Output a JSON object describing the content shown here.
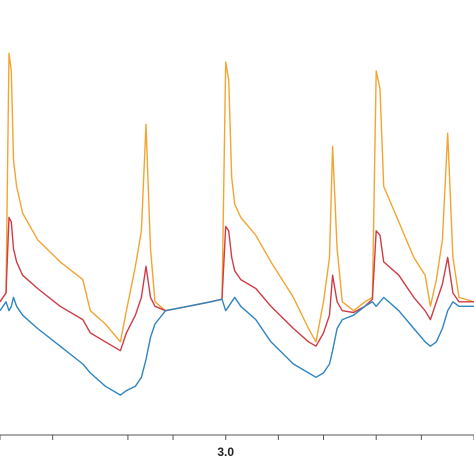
{
  "chart_data": {
    "type": "line",
    "xlim": [
      0,
      6.3
    ],
    "ylim": [
      -1.5,
      3.4
    ],
    "grid": false,
    "x_ticks": [
      0.0,
      0.7,
      1.7,
      2.3,
      3.0,
      3.7,
      4.3,
      5.0,
      5.6,
      6.3
    ],
    "x_tick_labels": [
      {
        "x": 3.0,
        "text": "3.0"
      }
    ],
    "series": [
      {
        "color": "#f2a531",
        "points": [
          [
            0,
            0
          ],
          [
            0.04,
            0.05
          ],
          [
            0.08,
            0.1
          ],
          [
            0.12,
            2.8
          ],
          [
            0.15,
            2.6
          ],
          [
            0.18,
            1.6
          ],
          [
            0.22,
            1.3
          ],
          [
            0.3,
            1.0
          ],
          [
            0.5,
            0.7
          ],
          [
            0.8,
            0.45
          ],
          [
            1.1,
            0.25
          ],
          [
            1.2,
            -0.1
          ],
          [
            1.4,
            -0.25
          ],
          [
            1.6,
            -0.45
          ],
          [
            1.68,
            -0.1
          ],
          [
            1.8,
            0.4
          ],
          [
            1.88,
            0.8
          ],
          [
            1.94,
            2.0
          ],
          [
            2.0,
            0.6
          ],
          [
            2.06,
            0.0
          ],
          [
            2.2,
            -0.1
          ],
          [
            2.5,
            -0.05
          ],
          [
            2.8,
            0.0
          ],
          [
            2.95,
            0.03
          ],
          [
            3.0,
            2.7
          ],
          [
            3.04,
            2.5
          ],
          [
            3.08,
            1.4
          ],
          [
            3.12,
            1.1
          ],
          [
            3.2,
            0.95
          ],
          [
            3.4,
            0.75
          ],
          [
            3.6,
            0.45
          ],
          [
            3.9,
            0.05
          ],
          [
            4.1,
            -0.3
          ],
          [
            4.2,
            -0.45
          ],
          [
            4.3,
            0.0
          ],
          [
            4.38,
            0.5
          ],
          [
            4.42,
            1.75
          ],
          [
            4.48,
            0.6
          ],
          [
            4.55,
            0.0
          ],
          [
            4.7,
            -0.1
          ],
          [
            4.85,
            0.0
          ],
          [
            4.95,
            0.05
          ],
          [
            5.0,
            2.6
          ],
          [
            5.05,
            2.4
          ],
          [
            5.1,
            1.3
          ],
          [
            5.3,
            0.9
          ],
          [
            5.5,
            0.5
          ],
          [
            5.65,
            0.3
          ],
          [
            5.72,
            -0.05
          ],
          [
            5.8,
            0.25
          ],
          [
            5.88,
            0.7
          ],
          [
            5.95,
            1.9
          ],
          [
            6.02,
            0.5
          ],
          [
            6.1,
            0.05
          ],
          [
            6.3,
            0.0
          ]
        ]
      },
      {
        "color": "#d13b46",
        "points": [
          [
            0,
            0
          ],
          [
            0.04,
            0.05
          ],
          [
            0.08,
            0.1
          ],
          [
            0.12,
            0.95
          ],
          [
            0.15,
            0.9
          ],
          [
            0.18,
            0.6
          ],
          [
            0.22,
            0.45
          ],
          [
            0.3,
            0.3
          ],
          [
            0.5,
            0.15
          ],
          [
            0.8,
            -0.05
          ],
          [
            1.1,
            -0.2
          ],
          [
            1.2,
            -0.35
          ],
          [
            1.4,
            -0.45
          ],
          [
            1.6,
            -0.55
          ],
          [
            1.68,
            -0.35
          ],
          [
            1.8,
            -0.15
          ],
          [
            1.88,
            0.05
          ],
          [
            1.94,
            0.4
          ],
          [
            2.0,
            0.05
          ],
          [
            2.06,
            -0.05
          ],
          [
            2.2,
            -0.1
          ],
          [
            2.5,
            -0.05
          ],
          [
            2.8,
            0.0
          ],
          [
            2.95,
            0.03
          ],
          [
            3.0,
            0.85
          ],
          [
            3.04,
            0.8
          ],
          [
            3.08,
            0.5
          ],
          [
            3.12,
            0.35
          ],
          [
            3.2,
            0.25
          ],
          [
            3.4,
            0.15
          ],
          [
            3.6,
            -0.05
          ],
          [
            3.9,
            -0.3
          ],
          [
            4.1,
            -0.45
          ],
          [
            4.2,
            -0.5
          ],
          [
            4.3,
            -0.35
          ],
          [
            4.38,
            -0.15
          ],
          [
            4.42,
            0.3
          ],
          [
            4.48,
            0.0
          ],
          [
            4.55,
            -0.1
          ],
          [
            4.7,
            -0.12
          ],
          [
            4.85,
            -0.05
          ],
          [
            4.95,
            0.03
          ],
          [
            5.0,
            0.8
          ],
          [
            5.05,
            0.75
          ],
          [
            5.1,
            0.45
          ],
          [
            5.3,
            0.3
          ],
          [
            5.5,
            0.05
          ],
          [
            5.65,
            -0.1
          ],
          [
            5.72,
            -0.2
          ],
          [
            5.8,
            0.0
          ],
          [
            5.88,
            0.2
          ],
          [
            5.95,
            0.5
          ],
          [
            6.02,
            0.1
          ],
          [
            6.1,
            0.0
          ],
          [
            6.3,
            0.0
          ]
        ]
      },
      {
        "color": "#2e86c1",
        "points": [
          [
            0,
            -0.1
          ],
          [
            0.04,
            -0.05
          ],
          [
            0.08,
            0.0
          ],
          [
            0.12,
            -0.1
          ],
          [
            0.15,
            -0.05
          ],
          [
            0.18,
            0.05
          ],
          [
            0.22,
            -0.05
          ],
          [
            0.3,
            -0.15
          ],
          [
            0.5,
            -0.3
          ],
          [
            0.8,
            -0.5
          ],
          [
            1.1,
            -0.7
          ],
          [
            1.2,
            -0.8
          ],
          [
            1.4,
            -0.95
          ],
          [
            1.6,
            -1.05
          ],
          [
            1.68,
            -1.0
          ],
          [
            1.8,
            -0.95
          ],
          [
            1.88,
            -0.85
          ],
          [
            1.94,
            -0.65
          ],
          [
            2.0,
            -0.4
          ],
          [
            2.06,
            -0.25
          ],
          [
            2.2,
            -0.1
          ],
          [
            2.5,
            -0.05
          ],
          [
            2.8,
            0.0
          ],
          [
            2.95,
            0.03
          ],
          [
            3.0,
            -0.1
          ],
          [
            3.04,
            -0.05
          ],
          [
            3.08,
            0.0
          ],
          [
            3.12,
            0.05
          ],
          [
            3.2,
            -0.05
          ],
          [
            3.4,
            -0.2
          ],
          [
            3.6,
            -0.45
          ],
          [
            3.9,
            -0.7
          ],
          [
            4.1,
            -0.8
          ],
          [
            4.2,
            -0.85
          ],
          [
            4.3,
            -0.8
          ],
          [
            4.38,
            -0.7
          ],
          [
            4.42,
            -0.55
          ],
          [
            4.48,
            -0.3
          ],
          [
            4.55,
            -0.2
          ],
          [
            4.7,
            -0.15
          ],
          [
            4.85,
            -0.05
          ],
          [
            4.95,
            0.0
          ],
          [
            5.0,
            -0.05
          ],
          [
            5.05,
            0.0
          ],
          [
            5.1,
            0.05
          ],
          [
            5.3,
            -0.1
          ],
          [
            5.5,
            -0.3
          ],
          [
            5.65,
            -0.45
          ],
          [
            5.72,
            -0.5
          ],
          [
            5.8,
            -0.45
          ],
          [
            5.88,
            -0.3
          ],
          [
            5.95,
            -0.1
          ],
          [
            6.02,
            0.0
          ],
          [
            6.1,
            -0.05
          ],
          [
            6.3,
            -0.05
          ]
        ]
      }
    ]
  }
}
